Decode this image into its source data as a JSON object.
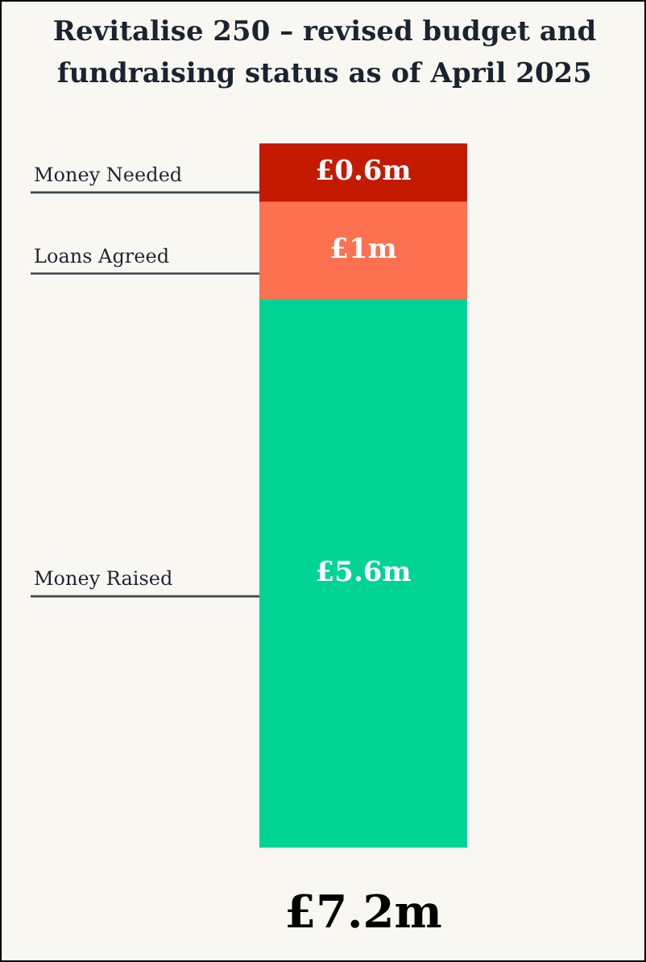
{
  "chart_data": {
    "type": "bar",
    "title": "Revitalise 250 – revised budget and fundraising status as of April 2025",
    "categories": [
      null
    ],
    "stacked": true,
    "ylim": [
      0,
      7.2
    ],
    "tick_labels": false,
    "series": [
      {
        "name": "Money Raised",
        "color": "#00d494",
        "values": [
          5.6
        ],
        "value_labels": [
          "£5.6m"
        ]
      },
      {
        "name": "Loans Agreed",
        "color": "#fe7150",
        "values": [
          1
        ],
        "value_labels": [
          "£1m"
        ]
      },
      {
        "name": "Money Needed",
        "color": "#c41a00",
        "values": [
          0.6
        ],
        "value_labels": [
          "£0.6m"
        ]
      }
    ],
    "totals": [
      "£7.2m"
    ]
  }
}
